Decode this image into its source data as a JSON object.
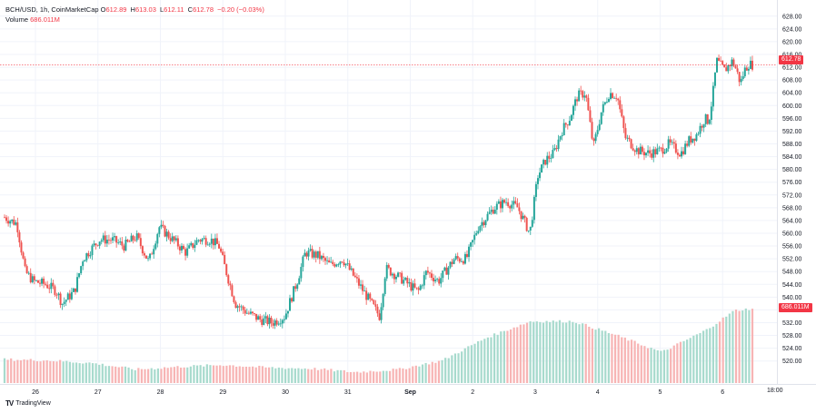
{
  "legend": {
    "symbol": "BCH/USD, 1h, CoinMarketCap",
    "o_label": "O",
    "o_value": "612.89",
    "h_label": "H",
    "h_value": "613.03",
    "l_label": "L",
    "l_value": "612.11",
    "c_label": "C",
    "c_value": "612.78",
    "change": "−0.20 (−0.03%)",
    "volume_label": "Volume",
    "volume_value": "686.011M"
  },
  "price_badge": "612.78",
  "volume_badge": "686.011M",
  "time_badge": "18:00",
  "brand": {
    "icon": "TV",
    "name": "TradingView"
  },
  "colors": {
    "up": "#26a69a",
    "down": "#ef5350",
    "vol_up": "#a7dacd",
    "vol_down": "#f7b4b4",
    "grid": "#f0f3fa",
    "price_line": "#f23645"
  },
  "chart_data": {
    "type": "candlestick",
    "y_ticks": [
      "628.00",
      "624.00",
      "620.00",
      "616.00",
      "612.00",
      "608.00",
      "604.00",
      "600.00",
      "596.00",
      "592.00",
      "588.00",
      "584.00",
      "580.00",
      "576.00",
      "572.00",
      "568.00",
      "564.00",
      "560.00",
      "556.00",
      "552.00",
      "548.00",
      "544.00",
      "540.00",
      "536.00",
      "532.00",
      "528.00",
      "524.00",
      "520.00"
    ],
    "x_ticks": [
      "26",
      "27",
      "28",
      "29",
      "30",
      "31",
      "Sep",
      "2",
      "3",
      "4",
      "5",
      "6"
    ],
    "ylim": [
      516.5,
      630.5
    ],
    "last_close": 612.78,
    "candle_count": 200,
    "hours_per_day": 24,
    "price_keyframes": [
      [
        0,
        565
      ],
      [
        6,
        563
      ],
      [
        10,
        548
      ],
      [
        14,
        545
      ],
      [
        20,
        544
      ],
      [
        25,
        542
      ],
      [
        28,
        538
      ],
      [
        34,
        542
      ],
      [
        38,
        552
      ],
      [
        42,
        555
      ],
      [
        46,
        558
      ],
      [
        52,
        558
      ],
      [
        58,
        556
      ],
      [
        64,
        559
      ],
      [
        70,
        551
      ],
      [
        75,
        562
      ],
      [
        80,
        559
      ],
      [
        88,
        554
      ],
      [
        94,
        558
      ],
      [
        100,
        558
      ],
      [
        104,
        556
      ],
      [
        108,
        547
      ],
      [
        112,
        538
      ],
      [
        118,
        535
      ],
      [
        124,
        533
      ],
      [
        130,
        532
      ],
      [
        136,
        534
      ],
      [
        142,
        545
      ],
      [
        146,
        554
      ],
      [
        152,
        553
      ],
      [
        158,
        550
      ],
      [
        164,
        552
      ],
      [
        170,
        546
      ],
      [
        176,
        540
      ],
      [
        182,
        534
      ],
      [
        185,
        549
      ],
      [
        192,
        546
      ],
      [
        200,
        542
      ]
    ],
    "price_keyframes_b": [
      [
        0,
        542
      ],
      [
        4,
        548
      ],
      [
        10,
        545
      ],
      [
        18,
        552
      ],
      [
        24,
        552
      ],
      [
        30,
        562
      ],
      [
        38,
        568
      ],
      [
        44,
        570
      ],
      [
        50,
        568
      ],
      [
        56,
        560
      ],
      [
        60,
        578
      ],
      [
        64,
        583
      ],
      [
        68,
        585
      ],
      [
        72,
        592
      ],
      [
        76,
        596
      ],
      [
        80,
        603
      ],
      [
        84,
        604
      ],
      [
        88,
        587
      ],
      [
        92,
        598
      ],
      [
        96,
        604
      ],
      [
        100,
        603
      ],
      [
        104,
        590
      ],
      [
        110,
        586
      ],
      [
        116,
        585
      ],
      [
        122,
        586
      ],
      [
        126,
        588
      ],
      [
        132,
        585
      ],
      [
        136,
        589
      ],
      [
        140,
        591
      ],
      [
        144,
        596
      ],
      [
        146,
        595
      ],
      [
        148,
        603
      ],
      [
        150,
        614
      ],
      [
        154,
        611
      ],
      [
        158,
        614
      ],
      [
        160,
        611
      ],
      [
        162,
        607
      ],
      [
        164,
        611
      ],
      [
        166,
        613
      ],
      [
        168,
        612.78
      ]
    ],
    "volume_keyframes": [
      [
        0,
        26
      ],
      [
        30,
        25
      ],
      [
        60,
        22
      ],
      [
        90,
        15
      ],
      [
        120,
        18
      ],
      [
        150,
        20
      ],
      [
        180,
        17
      ],
      [
        210,
        16
      ],
      [
        240,
        12
      ],
      [
        270,
        15
      ],
      [
        300,
        25
      ],
      [
        330,
        50
      ],
      [
        360,
        68
      ],
      [
        390,
        68
      ],
      [
        420,
        52
      ],
      [
        450,
        34
      ],
      [
        480,
        58
      ],
      [
        500,
        80
      ],
      [
        512,
        82
      ]
    ]
  }
}
